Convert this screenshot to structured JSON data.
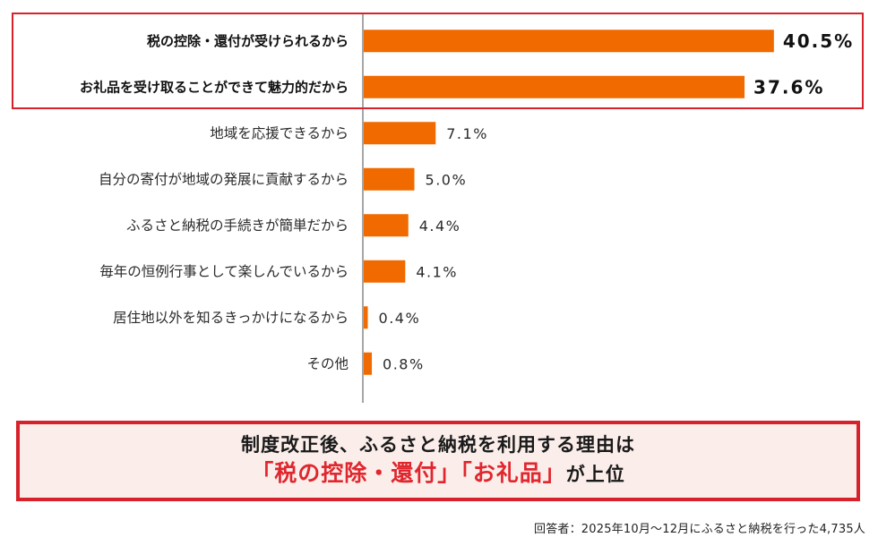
{
  "chart_data": {
    "type": "bar",
    "orientation": "horizontal",
    "categories": [
      "税の控除・還付が受けられるから",
      "お礼品を受け取ることができて魅力的だから",
      "地域を応援できるから",
      "自分の寄付が地域の発展に貢献するから",
      "ふるさと納税の手続きが簡単だから",
      "毎年の恒例行事として楽しんでいるから",
      "居住地以外を知るきっかけになるから",
      "その他"
    ],
    "values": [
      40.5,
      37.6,
      7.1,
      5.0,
      4.4,
      4.1,
      0.4,
      0.8
    ],
    "value_labels": [
      "40.5%",
      "37.6%",
      "7.1%",
      "5.0%",
      "4.4%",
      "4.1%",
      "0.4%",
      "0.8%"
    ],
    "highlighted": [
      true,
      true,
      false,
      false,
      false,
      false,
      false,
      false
    ],
    "xlim": [
      0,
      46
    ],
    "bar_color": "#f06a00",
    "grid": false,
    "legend": "none"
  },
  "colors": {
    "highlight_border": "#d7222b",
    "summary_bg": "#fbeeea",
    "highlight_text": "#e0262e"
  },
  "summary": {
    "line1": "制度改正後、ふるさと納税を利用する理由は",
    "highlight": "「税の控除・還付」「お礼品」",
    "tail": "が上位"
  },
  "footnote": "回答者：2025年10月〜12月にふるさと納税を行った4,735人"
}
